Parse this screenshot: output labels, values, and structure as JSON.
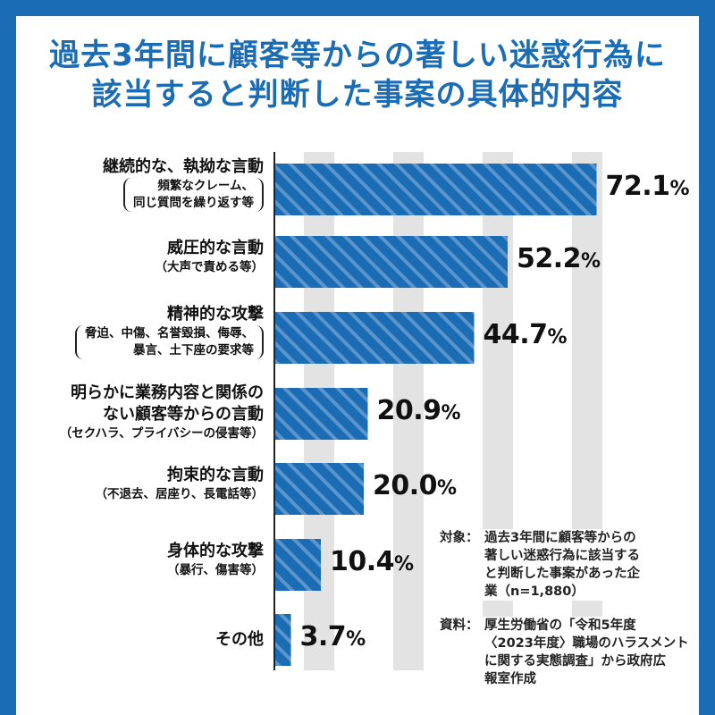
{
  "title": {
    "line1": "過去3年間に顧客等からの著しい迷惑行為に",
    "line2": "該当すると判断した事案の具体的内容"
  },
  "colors": {
    "frame": "#1a6db5",
    "bar": "#1a6db5",
    "stripe": "#5b95cc",
    "grid_band": "#e3e3e3",
    "title": "#1a6db5"
  },
  "chart_data": {
    "type": "bar",
    "orientation": "horizontal",
    "xlim": [
      0,
      100
    ],
    "grid": "vertical bands every 20",
    "categories": [
      "継続的な、執拗な言動（頻繁なクレーム、同じ質問を繰り返す等）",
      "威圧的な言動（大声で責める等）",
      "精神的な攻撃（脅迫、中傷、名誉毀損、侮辱、暴言、土下座の要求等）",
      "明らかに業務内容と関係のない顧客等からの言動（セクハラ、プライバシーの侵害等）",
      "拘束的な言動（不退去、居座り、長電話等）",
      "身体的な攻撃（暴行、傷害等）",
      "その他"
    ],
    "values": [
      72.1,
      52.2,
      44.7,
      20.9,
      20.0,
      10.4,
      3.7
    ],
    "value_labels": [
      "72.1",
      "52.2",
      "44.7",
      "20.9",
      "20.0",
      "10.4",
      "3.7"
    ],
    "unit": "%"
  },
  "labels": [
    {
      "main": "継続的な、執拗な言動",
      "sub": [
        "頻繁なクレーム、",
        "同じ質問を繰り返す等"
      ]
    },
    {
      "main": "威圧的な言動",
      "sub": [
        "（大声で責める等）"
      ]
    },
    {
      "main": "精神的な攻撃",
      "sub": [
        "脅迫、中傷、名誉毀損、侮辱、",
        "暴言、土下座の要求等"
      ]
    },
    {
      "main": "明らかに業務内容と関係の",
      "main2": "ない顧客等からの言動",
      "sub": [
        "（セクハラ、プライバシーの侵害等）"
      ]
    },
    {
      "main": "拘束的な言動",
      "sub": [
        "（不退去、居座り、長電話等）"
      ]
    },
    {
      "main": "身体的な攻撃",
      "sub": [
        "（暴行、傷害等）"
      ]
    },
    {
      "main": "その他",
      "sub": []
    }
  ],
  "notes": {
    "target_key": "対象：",
    "target_lines": [
      "過去3年間に顧客等からの",
      "著しい迷惑行為に該当する",
      "と判断した事案があった企",
      "業（n=1,880）"
    ],
    "source_key": "資料：",
    "source_lines": [
      "厚生労働省の「令和5年度",
      "〈2023年度〉職場のハラスメント",
      "に関する実態調査」から政府広",
      "報室作成"
    ]
  }
}
